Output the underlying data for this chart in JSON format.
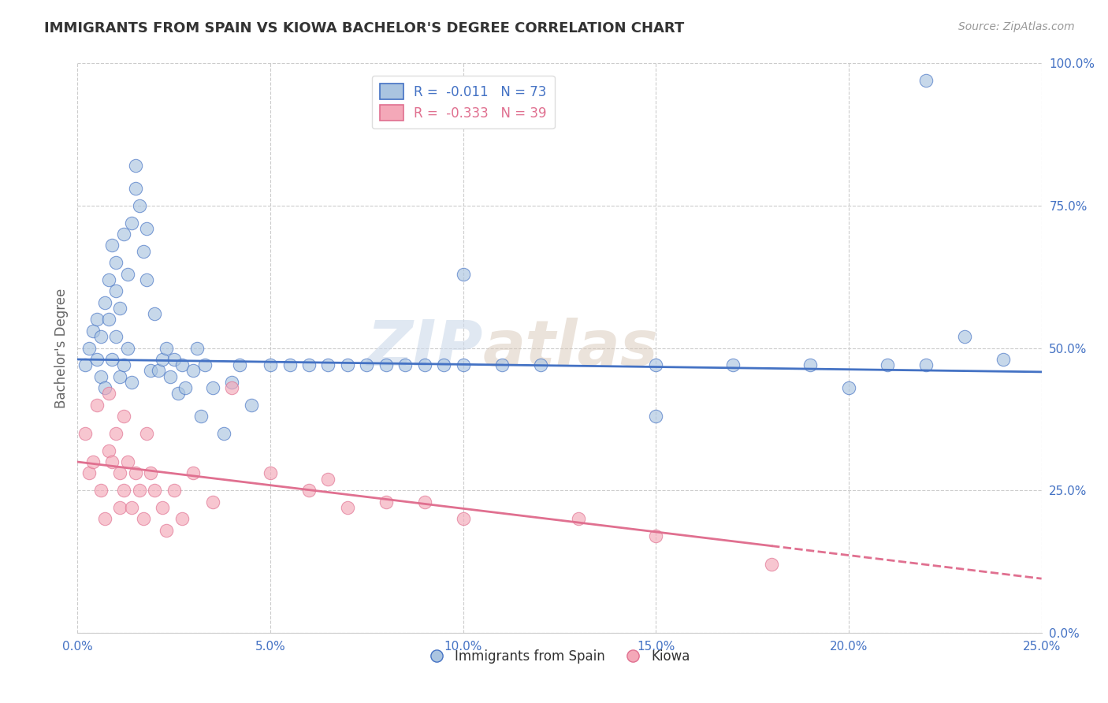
{
  "title": "IMMIGRANTS FROM SPAIN VS KIOWA BACHELOR'S DEGREE CORRELATION CHART",
  "source_text": "Source: ZipAtlas.com",
  "ylabel": "Bachelor's Degree",
  "xlim": [
    0.0,
    0.25
  ],
  "ylim": [
    0.0,
    1.0
  ],
  "xticks": [
    0.0,
    0.05,
    0.1,
    0.15,
    0.2,
    0.25
  ],
  "yticks": [
    0.0,
    0.25,
    0.5,
    0.75,
    1.0
  ],
  "xticklabels": [
    "0.0%",
    "5.0%",
    "10.0%",
    "15.0%",
    "20.0%",
    "25.0%"
  ],
  "yticklabels": [
    "0.0%",
    "25.0%",
    "50.0%",
    "75.0%",
    "100.0%"
  ],
  "blue_scatter_x": [
    0.002,
    0.003,
    0.004,
    0.005,
    0.005,
    0.006,
    0.006,
    0.007,
    0.007,
    0.008,
    0.008,
    0.009,
    0.009,
    0.01,
    0.01,
    0.01,
    0.011,
    0.011,
    0.012,
    0.012,
    0.013,
    0.013,
    0.014,
    0.014,
    0.015,
    0.015,
    0.016,
    0.017,
    0.018,
    0.018,
    0.019,
    0.02,
    0.021,
    0.022,
    0.023,
    0.024,
    0.025,
    0.026,
    0.027,
    0.028,
    0.03,
    0.031,
    0.032,
    0.033,
    0.035,
    0.038,
    0.04,
    0.042,
    0.045,
    0.05,
    0.055,
    0.06,
    0.065,
    0.07,
    0.075,
    0.08,
    0.085,
    0.09,
    0.095,
    0.1,
    0.11,
    0.12,
    0.15,
    0.17,
    0.19,
    0.21,
    0.22,
    0.23,
    0.24,
    0.1,
    0.15,
    0.2,
    0.22
  ],
  "blue_scatter_y": [
    0.47,
    0.5,
    0.53,
    0.48,
    0.55,
    0.52,
    0.45,
    0.58,
    0.43,
    0.62,
    0.55,
    0.48,
    0.68,
    0.52,
    0.6,
    0.65,
    0.57,
    0.45,
    0.7,
    0.47,
    0.63,
    0.5,
    0.72,
    0.44,
    0.78,
    0.82,
    0.75,
    0.67,
    0.62,
    0.71,
    0.46,
    0.56,
    0.46,
    0.48,
    0.5,
    0.45,
    0.48,
    0.42,
    0.47,
    0.43,
    0.46,
    0.5,
    0.38,
    0.47,
    0.43,
    0.35,
    0.44,
    0.47,
    0.4,
    0.47,
    0.47,
    0.47,
    0.47,
    0.47,
    0.47,
    0.47,
    0.47,
    0.47,
    0.47,
    0.47,
    0.47,
    0.47,
    0.47,
    0.47,
    0.47,
    0.47,
    0.47,
    0.52,
    0.48,
    0.63,
    0.38,
    0.43,
    0.97
  ],
  "pink_scatter_x": [
    0.002,
    0.003,
    0.004,
    0.005,
    0.006,
    0.007,
    0.008,
    0.008,
    0.009,
    0.01,
    0.011,
    0.011,
    0.012,
    0.012,
    0.013,
    0.014,
    0.015,
    0.016,
    0.017,
    0.018,
    0.019,
    0.02,
    0.022,
    0.023,
    0.025,
    0.027,
    0.03,
    0.035,
    0.04,
    0.05,
    0.06,
    0.065,
    0.07,
    0.08,
    0.09,
    0.1,
    0.13,
    0.15,
    0.18
  ],
  "pink_scatter_y": [
    0.35,
    0.28,
    0.3,
    0.4,
    0.25,
    0.2,
    0.32,
    0.42,
    0.3,
    0.35,
    0.22,
    0.28,
    0.25,
    0.38,
    0.3,
    0.22,
    0.28,
    0.25,
    0.2,
    0.35,
    0.28,
    0.25,
    0.22,
    0.18,
    0.25,
    0.2,
    0.28,
    0.23,
    0.43,
    0.28,
    0.25,
    0.27,
    0.22,
    0.23,
    0.23,
    0.2,
    0.2,
    0.17,
    0.12
  ],
  "blue_line_x": [
    0.0,
    0.25
  ],
  "blue_line_y": [
    0.48,
    0.458
  ],
  "pink_line_x": [
    0.0,
    0.25
  ],
  "pink_line_y": [
    0.3,
    0.095
  ],
  "blue_color": "#aac4e0",
  "pink_color": "#f4a8b8",
  "blue_line_color": "#4472c4",
  "pink_line_color": "#e07090",
  "legend_blue_label": "R =  -0.011   N = 73",
  "legend_pink_label": "R =  -0.333   N = 39",
  "legend_label_blue": "Immigrants from Spain",
  "legend_label_pink": "Kiowa",
  "watermark_zip": "ZIP",
  "watermark_atlas": "atlas",
  "grid_color": "#cccccc",
  "background_color": "#ffffff",
  "title_color": "#333333",
  "axis_label_color": "#666666",
  "tick_color": "#4472c4",
  "source_color": "#999999"
}
